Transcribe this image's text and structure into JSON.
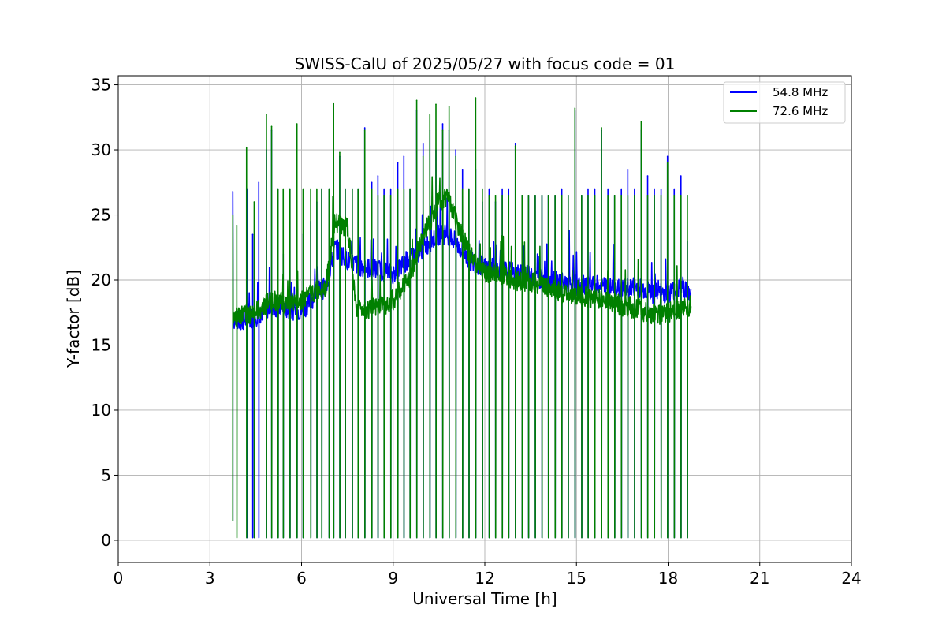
{
  "chart_data": {
    "type": "line",
    "title": "SWISS-CalU of 2025/05/27 with focus code = 01",
    "xlabel": "Universal Time [h]",
    "ylabel": "Y-factor [dB]",
    "xlim": [
      0,
      24
    ],
    "ylim": [
      -1.7,
      35.7
    ],
    "xticks": [
      0,
      3,
      6,
      9,
      12,
      15,
      18,
      21,
      24
    ],
    "yticks": [
      0,
      5,
      10,
      15,
      20,
      25,
      30,
      35
    ],
    "grid": true,
    "legend_position": "top-right",
    "baseline_spike_value": 0.2,
    "colors": {
      "54.8 MHz": "#0000ff",
      "72.6 MHz": "#008000"
    },
    "series": [
      {
        "name": "54.8 MHz",
        "color": "#0000ff",
        "x": [
          3.75,
          4.0,
          4.5,
          5.0,
          5.5,
          6.0,
          6.5,
          6.8,
          7.1,
          7.5,
          8.0,
          8.5,
          9.0,
          9.5,
          10.0,
          10.5,
          10.8,
          11.0,
          11.5,
          12.0,
          12.5,
          13.0,
          13.5,
          14.0,
          14.5,
          15.0,
          15.5,
          16.0,
          16.5,
          17.0,
          17.5,
          18.0,
          18.5,
          18.75
        ],
        "y": [
          17.0,
          16.8,
          17.2,
          18.0,
          17.8,
          17.6,
          19.0,
          19.5,
          22.5,
          21.5,
          21.0,
          20.8,
          20.5,
          21.5,
          22.5,
          23.5,
          23.5,
          23.0,
          21.5,
          21.0,
          20.8,
          20.5,
          20.3,
          20.0,
          19.8,
          19.6,
          19.5,
          19.4,
          19.3,
          19.5,
          19.0,
          19.0,
          19.5,
          18.8
        ],
        "spike_times": [
          4.23,
          4.4,
          4.6,
          4.85,
          5.02,
          5.23,
          5.4,
          5.62,
          5.85,
          6.05,
          6.3,
          6.5,
          6.66,
          6.9,
          7.05,
          7.25,
          7.43,
          7.66,
          7.85,
          8.07,
          8.3,
          8.5,
          8.7,
          8.92,
          9.15,
          9.35,
          9.55,
          9.77,
          9.98,
          10.2,
          10.4,
          10.62,
          10.83,
          11.05,
          11.27,
          11.48,
          11.7,
          11.92,
          12.14,
          12.35,
          12.57,
          12.78,
          13.0,
          13.22,
          13.43,
          13.65,
          13.87,
          14.08,
          14.3,
          14.52,
          14.73,
          14.95,
          15.17,
          15.38,
          15.6,
          15.82,
          16.03,
          16.25,
          16.47,
          16.68,
          16.9,
          17.12,
          17.33,
          17.55,
          17.77,
          17.98,
          18.2,
          18.42,
          18.63
        ],
        "spike_peaks": [
          27.0,
          23.5,
          27.5,
          30.0,
          31.5,
          27.0,
          22.0,
          27.0,
          24.0,
          23.5,
          24.5,
          26.0,
          27.0,
          27.0,
          33.5,
          29.5,
          27.0,
          27.0,
          27.0,
          31.7,
          27.5,
          28.0,
          27.0,
          27.0,
          29.0,
          29.5,
          27.0,
          33.0,
          30.5,
          31.5,
          30.0,
          32.0,
          31.5,
          30.0,
          28.5,
          27.0,
          28.5,
          26.0,
          27.0,
          26.0,
          27.0,
          27.0,
          30.5,
          26.5,
          26.5,
          26.5,
          26.5,
          26.5,
          26.5,
          27.0,
          26.5,
          33.0,
          26.5,
          27.0,
          27.0,
          31.5,
          27.0,
          26.5,
          27.0,
          28.5,
          27.0,
          31.5,
          28.0,
          27.0,
          27.0,
          29.5,
          27.0,
          28.0,
          23.0
        ]
      },
      {
        "name": "72.6 MHz",
        "color": "#008000",
        "x": [
          3.75,
          4.0,
          4.5,
          5.0,
          5.5,
          6.0,
          6.5,
          6.8,
          7.1,
          7.5,
          7.8,
          8.5,
          9.0,
          9.5,
          10.0,
          10.5,
          10.8,
          11.0,
          11.5,
          12.0,
          12.5,
          13.0,
          13.5,
          14.0,
          14.5,
          15.0,
          15.5,
          16.0,
          16.5,
          17.0,
          17.5,
          18.0,
          18.5,
          18.75
        ],
        "y": [
          17.2,
          17.3,
          17.5,
          18.5,
          18.2,
          18.5,
          19.2,
          19.5,
          24.5,
          24.0,
          17.8,
          17.8,
          18.5,
          20.0,
          23.5,
          26.0,
          26.5,
          25.0,
          22.0,
          20.5,
          20.5,
          20.0,
          19.8,
          19.5,
          19.0,
          18.8,
          18.6,
          18.5,
          18.0,
          17.8,
          17.3,
          17.5,
          17.8,
          18.0
        ],
        "spike_times": [
          3.88,
          4.2,
          4.45,
          4.85,
          5.02,
          5.23,
          5.4,
          5.62,
          5.85,
          6.05,
          6.3,
          6.5,
          6.66,
          6.9,
          7.05,
          7.25,
          7.43,
          7.66,
          7.85,
          8.07,
          8.3,
          8.5,
          8.7,
          8.92,
          9.15,
          9.35,
          9.55,
          9.77,
          9.98,
          10.2,
          10.4,
          10.62,
          10.83,
          11.05,
          11.27,
          11.48,
          11.7,
          11.92,
          12.14,
          12.35,
          12.57,
          12.78,
          13.0,
          13.22,
          13.43,
          13.65,
          13.87,
          14.08,
          14.3,
          14.52,
          14.73,
          14.95,
          15.17,
          15.38,
          15.6,
          15.82,
          16.03,
          16.25,
          16.47,
          16.68,
          16.9,
          17.12,
          17.33,
          17.55,
          17.77,
          17.98,
          18.2,
          18.42,
          18.63
        ],
        "spike_peaks": [
          24.2,
          30.2,
          26.0,
          32.7,
          31.8,
          27.0,
          27.0,
          27.0,
          32.0,
          27.0,
          27.0,
          27.0,
          27.0,
          27.0,
          33.6,
          29.8,
          27.0,
          27.0,
          27.0,
          31.5,
          27.0,
          26.5,
          26.5,
          26.5,
          27.0,
          27.0,
          27.0,
          33.8,
          29.5,
          32.7,
          33.5,
          31.5,
          33.3,
          29.5,
          27.0,
          27.0,
          34.0,
          27.0,
          26.5,
          26.5,
          26.5,
          26.5,
          30.3,
          26.5,
          26.5,
          26.5,
          26.5,
          26.5,
          26.5,
          26.5,
          26.5,
          33.2,
          26.5,
          26.5,
          26.5,
          31.7,
          26.5,
          26.5,
          26.5,
          26.5,
          26.5,
          32.2,
          26.5,
          26.5,
          26.5,
          29.0,
          26.5,
          26.5,
          26.5
        ]
      }
    ]
  }
}
